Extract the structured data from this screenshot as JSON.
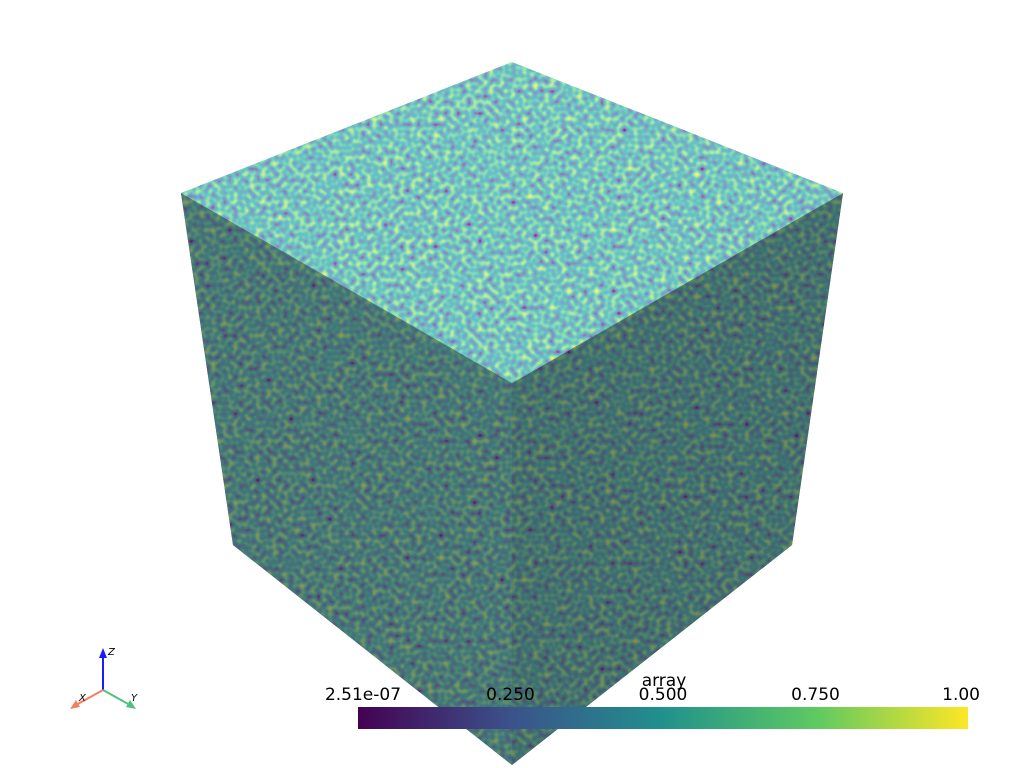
{
  "scalar_bar": {
    "title": "array",
    "labels": [
      "2.51e-07",
      "0.250",
      "0.500",
      "0.750",
      "1.00"
    ]
  },
  "axes": {
    "x": "X",
    "y": "Y",
    "z": "Z"
  }
}
